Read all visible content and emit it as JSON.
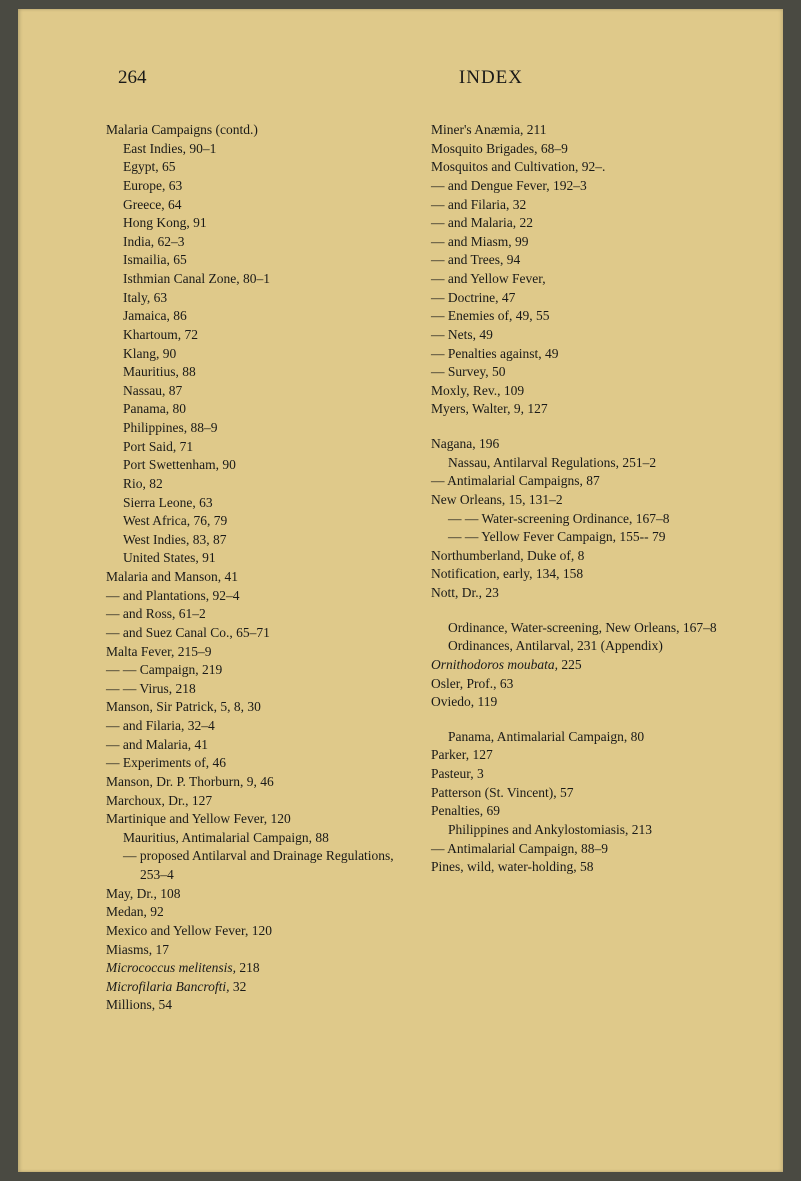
{
  "header": {
    "page_number": "264",
    "title": "INDEX"
  },
  "colors": {
    "paper_bg": "#dfc98a",
    "outer_bg": "#4a4a42",
    "text": "#1a1a18"
  },
  "typography": {
    "body_fontsize": 13.5,
    "header_fontsize": 19,
    "line_height": 1.38
  },
  "left_column": [
    {
      "text": "Malaria Campaigns (contd.)",
      "indent": 0
    },
    {
      "text": "East Indies, 90–1",
      "indent": 1
    },
    {
      "text": "Egypt, 65",
      "indent": 1
    },
    {
      "text": "Europe, 63",
      "indent": 1
    },
    {
      "text": "Greece, 64",
      "indent": 1
    },
    {
      "text": "Hong Kong, 91",
      "indent": 1
    },
    {
      "text": "India, 62–3",
      "indent": 1
    },
    {
      "text": "Ismailia, 65",
      "indent": 1
    },
    {
      "text": "Isthmian Canal Zone, 80–1",
      "indent": 1
    },
    {
      "text": "Italy, 63",
      "indent": 1
    },
    {
      "text": "Jamaica, 86",
      "indent": 1
    },
    {
      "text": "Khartoum, 72",
      "indent": 1
    },
    {
      "text": "Klang, 90",
      "indent": 1
    },
    {
      "text": "Mauritius, 88",
      "indent": 1
    },
    {
      "text": "Nassau, 87",
      "indent": 1
    },
    {
      "text": "Panama, 80",
      "indent": 1
    },
    {
      "text": "Philippines, 88–9",
      "indent": 1
    },
    {
      "text": "Port Said, 71",
      "indent": 1
    },
    {
      "text": "Port Swettenham, 90",
      "indent": 1
    },
    {
      "text": "Rio, 82",
      "indent": 1
    },
    {
      "text": "Sierra Leone, 63",
      "indent": 1
    },
    {
      "text": "West Africa, 76, 79",
      "indent": 1
    },
    {
      "text": "West Indies, 83, 87",
      "indent": 1
    },
    {
      "text": "United States, 91",
      "indent": 1
    },
    {
      "text": "Malaria and Manson, 41",
      "indent": 0
    },
    {
      "text": "— and Plantations, 92–4",
      "indent": 0
    },
    {
      "text": "— and Ross, 61–2",
      "indent": 0
    },
    {
      "text": "— and Suez Canal Co., 65–71",
      "indent": 0
    },
    {
      "text": "Malta Fever, 215–9",
      "indent": 0
    },
    {
      "text": "— — Campaign, 219",
      "indent": 0
    },
    {
      "text": "— — Virus, 218",
      "indent": 0
    },
    {
      "text": "Manson, Sir Patrick, 5, 8, 30",
      "indent": 0
    },
    {
      "text": "— and Filaria, 32–4",
      "indent": 0
    },
    {
      "text": "— and Malaria, 41",
      "indent": 0
    },
    {
      "text": "— Experiments of, 46",
      "indent": 0
    },
    {
      "text": "Manson, Dr. P. Thorburn, 9, 46",
      "indent": 0
    },
    {
      "text": "Marchoux, Dr., 127",
      "indent": 0
    },
    {
      "text": "Martinique and Yellow Fever, 120",
      "indent": 0
    },
    {
      "text": "Mauritius, Antimalarial Campaign, 88",
      "indent": 0,
      "hanging": true
    },
    {
      "text": "— proposed Antilarval and Drainage Regulations, 253–4",
      "indent": 0,
      "hanging": true
    },
    {
      "text": "May, Dr., 108",
      "indent": 0
    },
    {
      "text": "Medan, 92",
      "indent": 0
    },
    {
      "text": "Mexico and Yellow Fever, 120",
      "indent": 0
    },
    {
      "text": "Miasms, 17",
      "indent": 0
    },
    {
      "text": "Micrococcus melitensis, 218",
      "indent": 0,
      "italic_words": [
        "Micrococcus",
        "melitensis,"
      ]
    },
    {
      "text": "Microfilaria Bancrofti, 32",
      "indent": 0,
      "italic_words": [
        "Microfilaria",
        "Bancrofti,"
      ]
    },
    {
      "text": "Millions, 54",
      "indent": 0
    }
  ],
  "right_column": [
    {
      "text": "Miner's Anæmia, 211",
      "indent": 0
    },
    {
      "text": "Mosquito Brigades, 68–9",
      "indent": 0
    },
    {
      "text": "Mosquitos and Cultivation, 92–.",
      "indent": 0
    },
    {
      "text": "— and Dengue Fever, 192–3",
      "indent": 0
    },
    {
      "text": "— and Filaria, 32",
      "indent": 0
    },
    {
      "text": "— and Malaria, 22",
      "indent": 0
    },
    {
      "text": "— and Miasm, 99",
      "indent": 0
    },
    {
      "text": "— and Trees, 94",
      "indent": 0
    },
    {
      "text": "— and Yellow Fever,",
      "indent": 0
    },
    {
      "text": "— Doctrine, 47",
      "indent": 0
    },
    {
      "text": "— Enemies of, 49, 55",
      "indent": 0
    },
    {
      "text": "— Nets, 49",
      "indent": 0
    },
    {
      "text": "— Penalties against, 49",
      "indent": 0
    },
    {
      "text": "— Survey, 50",
      "indent": 0
    },
    {
      "text": "Moxly, Rev., 109",
      "indent": 0
    },
    {
      "text": "Myers, Walter, 9, 127",
      "indent": 0
    },
    {
      "gap": true
    },
    {
      "text": "Nagana, 196",
      "indent": 0
    },
    {
      "text": "Nassau, Antilarval Regulations, 251–2",
      "indent": 0,
      "hanging": true
    },
    {
      "text": "— Antimalarial Campaigns, 87",
      "indent": 0
    },
    {
      "text": "New Orleans, 15, 131–2",
      "indent": 0
    },
    {
      "text": "— — Water-screening Ordinance, 167–8",
      "indent": 0,
      "hanging": true
    },
    {
      "text": "— — Yellow Fever Campaign, 155-- 79",
      "indent": 0,
      "hanging": true
    },
    {
      "text": "Northumberland, Duke of, 8",
      "indent": 0
    },
    {
      "text": "Notification, early, 134, 158",
      "indent": 0
    },
    {
      "text": "Nott, Dr., 23",
      "indent": 0
    },
    {
      "gap": true
    },
    {
      "text": "Ordinance, Water-screening, New Orleans, 167–8",
      "indent": 0,
      "hanging": true
    },
    {
      "text": "Ordinances, Antilarval, 231 (Appendix)",
      "indent": 0,
      "hanging": true
    },
    {
      "text": "Ornithodoros moubata, 225",
      "indent": 0,
      "italic_words": [
        "Ornithodoros",
        "moubata,"
      ]
    },
    {
      "text": "Osler, Prof., 63",
      "indent": 0
    },
    {
      "text": "Oviedo, 119",
      "indent": 0
    },
    {
      "gap": true
    },
    {
      "text": "Panama, Antimalarial Campaign, 80",
      "indent": 0,
      "hanging": true
    },
    {
      "text": "Parker, 127",
      "indent": 0
    },
    {
      "text": "Pasteur, 3",
      "indent": 0
    },
    {
      "text": "Patterson (St. Vincent), 57",
      "indent": 0
    },
    {
      "text": "Penalties, 69",
      "indent": 0
    },
    {
      "text": "Philippines and Ankylostomiasis, 213",
      "indent": 0,
      "hanging": true
    },
    {
      "text": "— Antimalarial Campaign, 88–9",
      "indent": 0
    },
    {
      "text": "Pines, wild, water-holding, 58",
      "indent": 0
    }
  ]
}
